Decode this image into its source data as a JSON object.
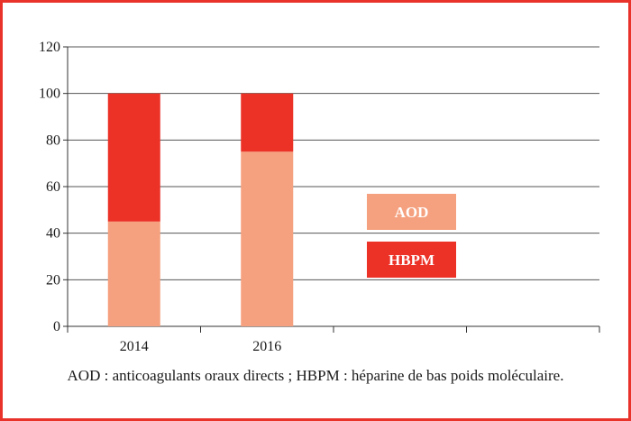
{
  "chart_data": {
    "type": "bar",
    "stacked": true,
    "categories": [
      "2014",
      "2016",
      "",
      ""
    ],
    "series": [
      {
        "name": "AOD",
        "values": [
          45,
          75,
          null,
          null
        ],
        "color": "#f5a07e"
      },
      {
        "name": "HBPM",
        "values": [
          55,
          25,
          null,
          null
        ],
        "color": "#ec3127"
      }
    ],
    "ylim": [
      0,
      120
    ],
    "yticks": [
      0,
      20,
      40,
      60,
      80,
      100,
      120
    ],
    "grid": true,
    "legend_placement": "right-center",
    "title": "",
    "xlabel": "",
    "ylabel": ""
  },
  "caption": "AOD : anticoagulants oraux directs ; HBPM : héparine de bas poids moléculaire.",
  "colors": {
    "frame": "#e8322a",
    "gridline": "#555555",
    "axis": "#333333",
    "legend_text": "#ffffff"
  }
}
